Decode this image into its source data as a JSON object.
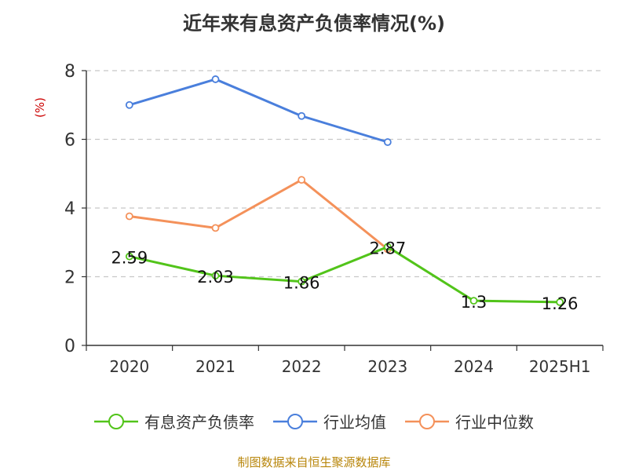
{
  "chart_data": {
    "type": "line",
    "title": "近年来有息资产负债率情况(%)",
    "ylabel": "(%)",
    "xlabel": "",
    "categories": [
      "2020",
      "2021",
      "2022",
      "2023",
      "2024",
      "2025H1"
    ],
    "ylim": [
      0,
      8
    ],
    "yticks": [
      "0",
      "2",
      "4",
      "6",
      "8"
    ],
    "grid": true,
    "legend_position": "bottom",
    "series": [
      {
        "name": "有息资产负债率",
        "color": "#52c41a",
        "values": [
          2.59,
          2.03,
          1.86,
          2.87,
          1.3,
          1.26
        ],
        "labels": [
          "2.59",
          "2.03",
          "1.86",
          "2.87",
          "1.3",
          "1.26"
        ]
      },
      {
        "name": "行业均值",
        "color": "#4a7fdc",
        "values": [
          7.0,
          7.75,
          6.68,
          5.92,
          null,
          null
        ]
      },
      {
        "name": "行业中位数",
        "color": "#f4915a",
        "values": [
          3.76,
          3.42,
          4.82,
          2.8,
          null,
          null
        ]
      }
    ]
  },
  "footer": "制图数据来自恒生聚源数据库"
}
